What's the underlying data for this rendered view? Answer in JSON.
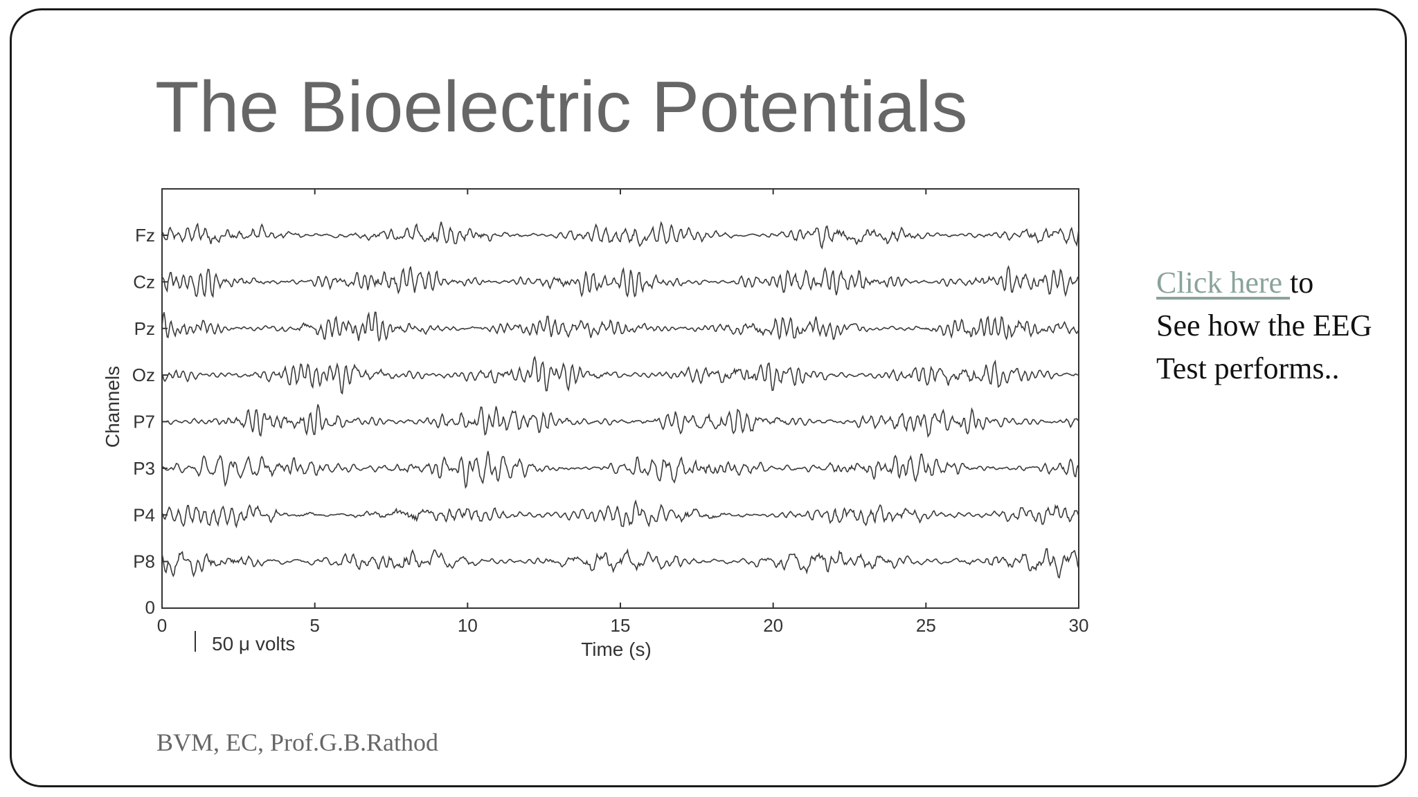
{
  "slide": {
    "title": "The Bioelectric Potentials",
    "link_text": "Click here ",
    "link_suffix": "to",
    "line2": "See how the EEG",
    "line3": "Test performs..",
    "footer": "BVM, EC, Prof.G.B.Rathod"
  },
  "chart_data": {
    "type": "line",
    "title": "",
    "xlabel": "Time (s)",
    "ylabel": "Channels",
    "xlim": [
      0,
      30
    ],
    "x_ticks": [
      0,
      5,
      10,
      15,
      20,
      25,
      30
    ],
    "y_tick_zero": "0",
    "channels": [
      "Fz",
      "Cz",
      "Pz",
      "Oz",
      "P7",
      "P3",
      "P4",
      "P8"
    ],
    "scale_bar_label": "50 μ volts",
    "grid": false,
    "colors": {
      "trace": "#3a3a3a",
      "axis": "#333333"
    }
  }
}
